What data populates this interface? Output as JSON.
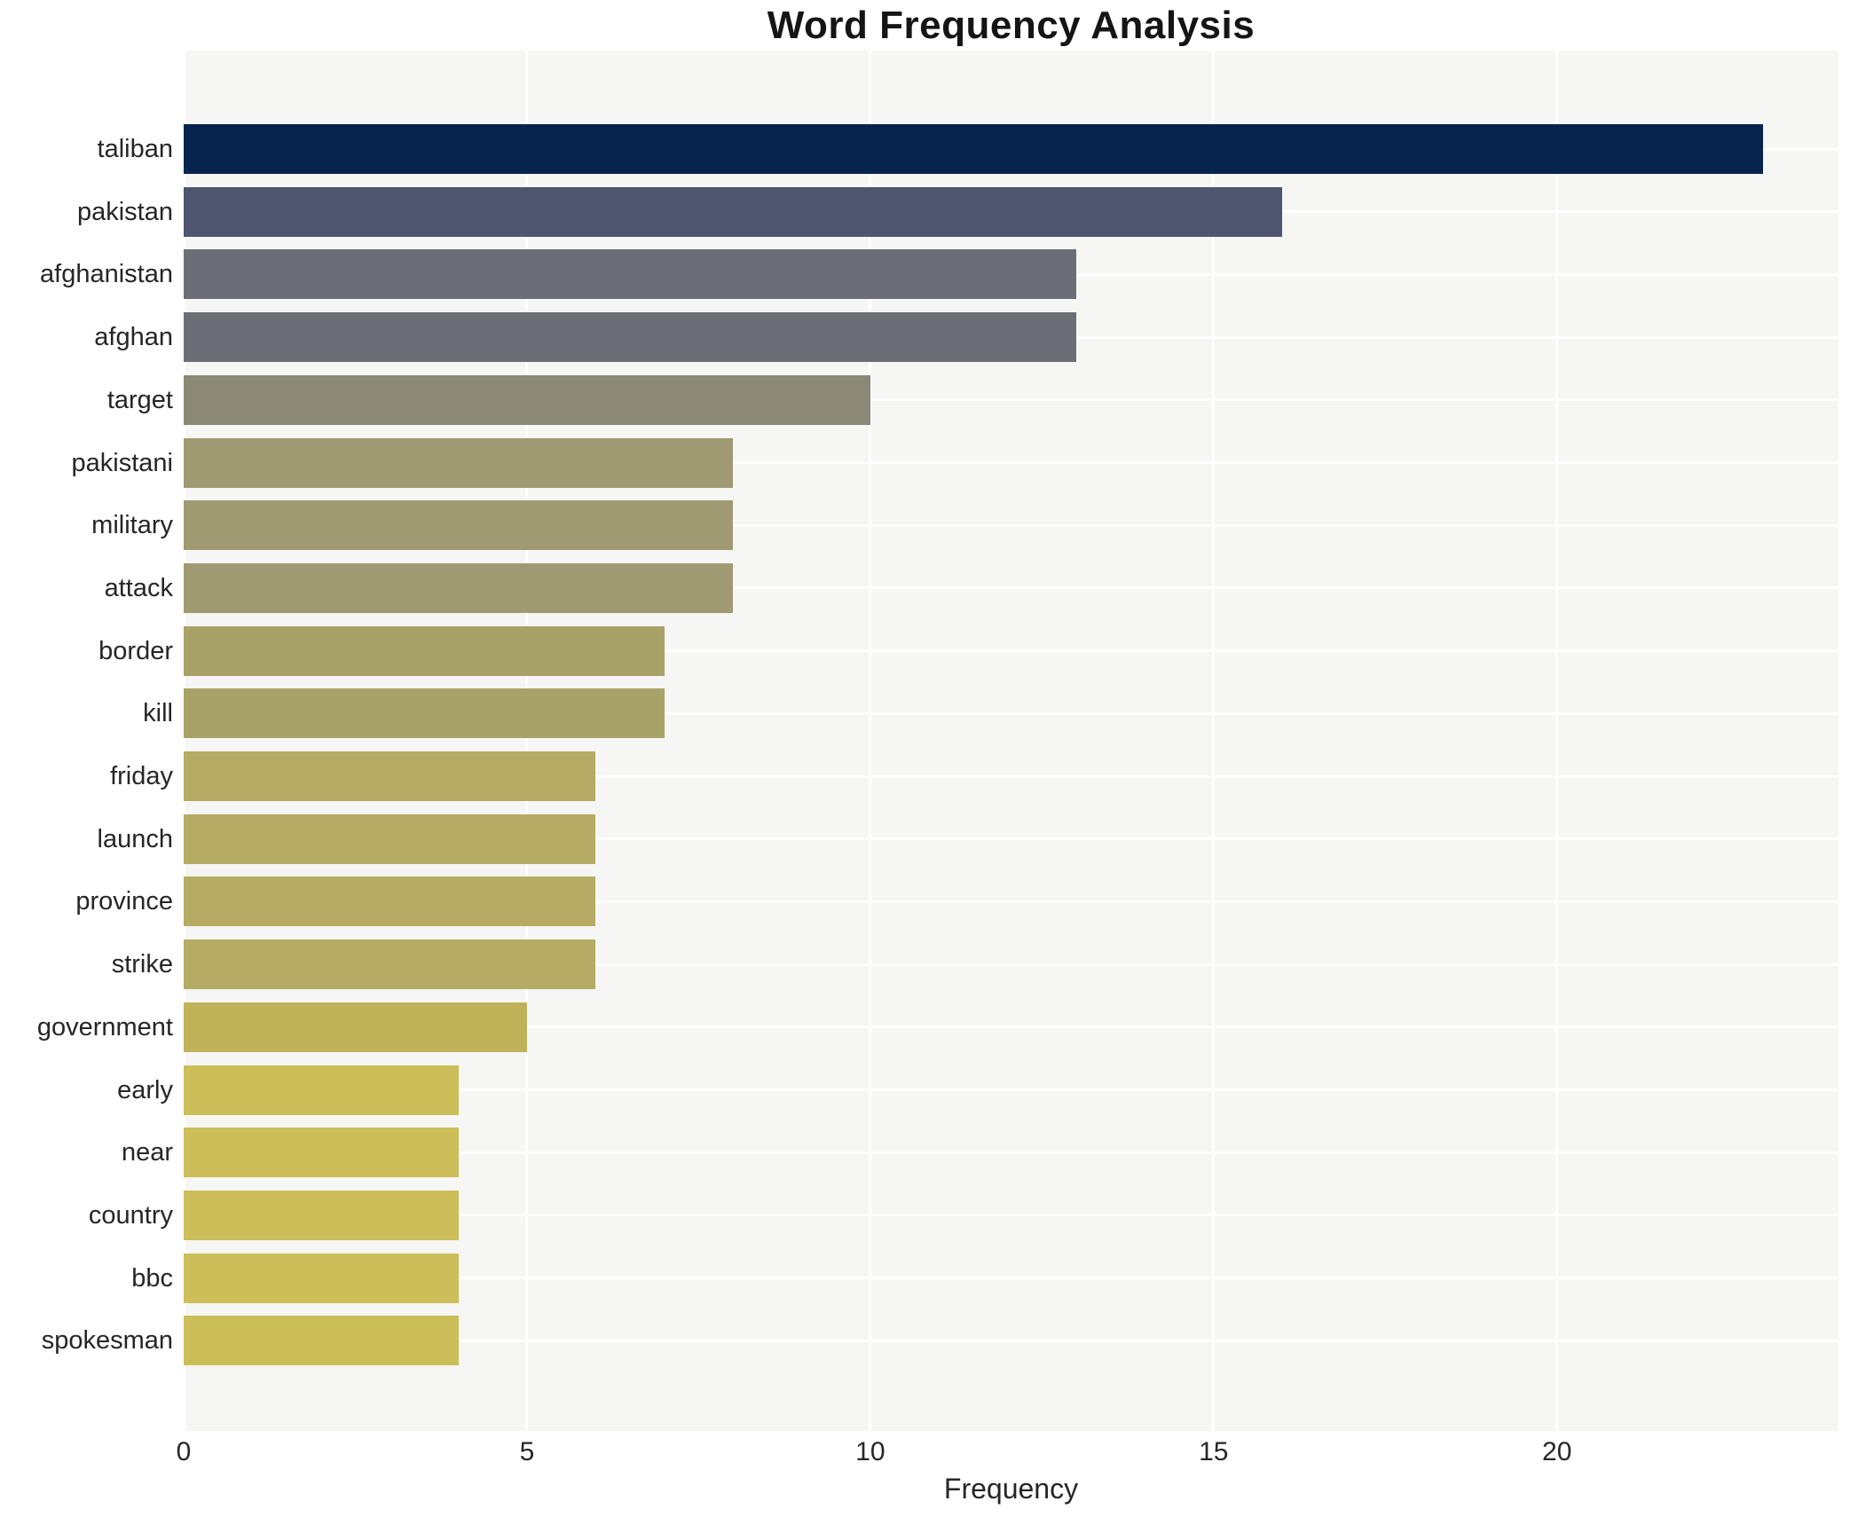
{
  "title": "Word Frequency Analysis",
  "chart_data": {
    "type": "bar",
    "orientation": "horizontal",
    "title": "Word Frequency Analysis",
    "xlabel": "Frequency",
    "ylabel": "",
    "categories": [
      "taliban",
      "pakistan",
      "afghanistan",
      "afghan",
      "target",
      "pakistani",
      "military",
      "attack",
      "border",
      "kill",
      "friday",
      "launch",
      "province",
      "strike",
      "government",
      "early",
      "near",
      "country",
      "bbc",
      "spokesman"
    ],
    "values": [
      23,
      16,
      13,
      13,
      10,
      8,
      8,
      8,
      7,
      7,
      6,
      6,
      6,
      6,
      5,
      4,
      4,
      4,
      4,
      4
    ],
    "bar_colors": [
      "#06244e",
      "#4d566e",
      "#6c6e75",
      "#6c6e75",
      "#8b8875",
      "#9f9a71",
      "#9f9a71",
      "#9f9a71",
      "#a9a268",
      "#a9a268",
      "#b5ab64",
      "#b5ab64",
      "#b5ab64",
      "#b5ab64",
      "#bfb259",
      "#ccbe58",
      "#ccbe58",
      "#ccbe58",
      "#ccbe58",
      "#ccbe58"
    ],
    "xlim": [
      0,
      24.1
    ],
    "xticks": [
      0,
      5,
      10,
      15,
      20
    ],
    "grid": true,
    "legend": "none",
    "plot_bg_color": "#f6f6f4",
    "grid_color": "#ffffff",
    "text_color": "#262626",
    "title_color": "#151515"
  }
}
